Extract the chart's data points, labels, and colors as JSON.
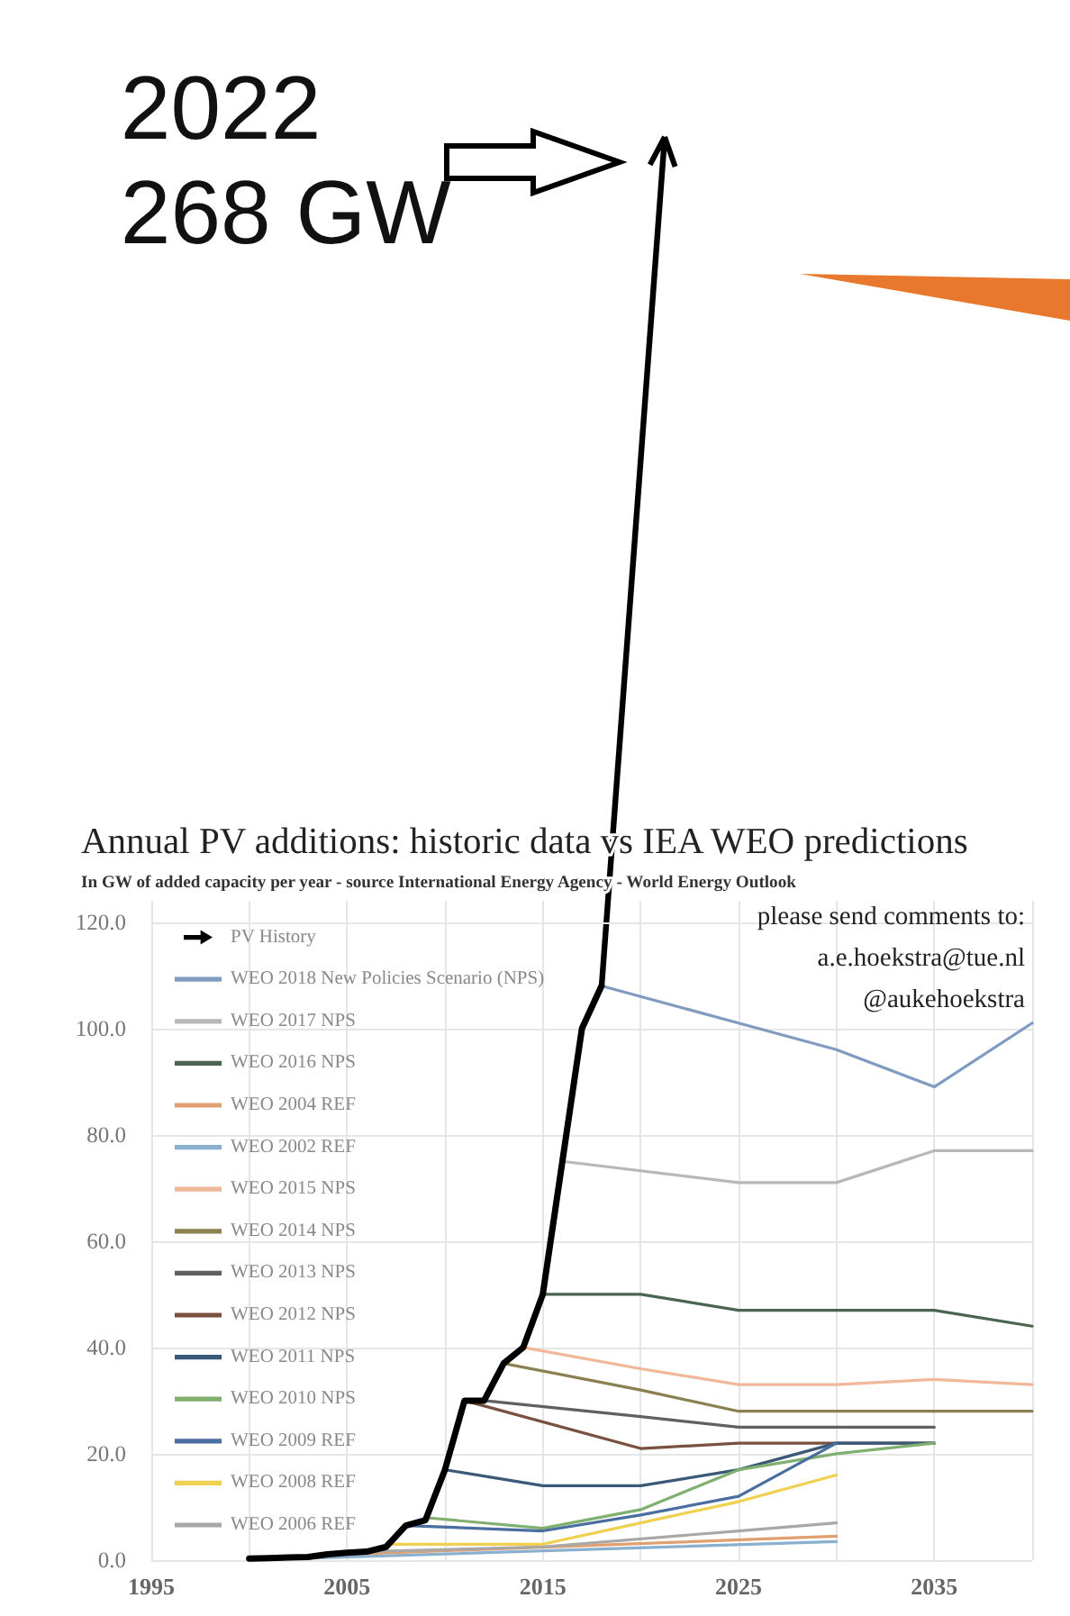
{
  "chart_data": {
    "type": "line",
    "title": "Annual PV additions: historic data vs IEA WEO predictions",
    "subtitle": "In GW of added capacity per year - source International Energy Agency - World Energy Outlook",
    "annotations": [
      "2022\n268 GW",
      "please send comments to:\na.e.hoekstra@tue.nl\n@aukehoekstra"
    ],
    "xlim": [
      1995,
      2040
    ],
    "ylim": [
      0,
      124
    ],
    "xticks": [
      1995,
      {
        "value": 2000,
        "label": null
      },
      2005,
      {
        "value": 2010,
        "label": null
      },
      2015,
      {
        "value": 2020,
        "label": null
      },
      2025,
      {
        "value": 2030,
        "label": null
      },
      2035,
      {
        "value": 2040,
        "label": null
      }
    ],
    "yticks": [
      {
        "value": 0,
        "label": "0.0"
      },
      {
        "value": 20,
        "label": "20.0"
      },
      {
        "value": 40,
        "label": "40.0"
      },
      {
        "value": 60,
        "label": "60.0"
      },
      {
        "value": 80,
        "label": "80.0"
      },
      {
        "value": 100,
        "label": "100.0"
      },
      {
        "value": 120,
        "label": "120.0"
      }
    ],
    "grid": true,
    "legend": "top left",
    "marker": "none",
    "line_style": "solid",
    "series": [
      {
        "name": "PV History",
        "color": "#000000",
        "x": [
          2000,
          2001,
          2002,
          2003,
          2004,
          2005,
          2006,
          2007,
          2008,
          2009,
          2010,
          2011,
          2012,
          2013,
          2014,
          2015,
          2016,
          2017,
          2018
        ],
        "values": [
          0.3,
          0.4,
          0.5,
          0.6,
          1.1,
          1.4,
          1.6,
          2.5,
          6.5,
          7.5,
          17,
          30,
          30,
          37,
          40,
          50,
          75,
          100,
          108
        ]
      },
      {
        "name": "WEO 2018 New Policies Scenario (NPS)",
        "color": "#7f9cc0",
        "x": [
          2018,
          2025,
          2030,
          2035,
          2040
        ],
        "values": [
          108,
          101,
          96,
          89,
          101
        ]
      },
      {
        "name": "WEO 2017 NPS",
        "color": "#b8b8b8",
        "x": [
          2016,
          2025,
          2030,
          2035,
          2040
        ],
        "values": [
          75,
          71,
          71,
          77,
          77
        ]
      },
      {
        "name": "WEO 2016 NPS",
        "color": "#4a6450",
        "x": [
          2015,
          2020,
          2025,
          2030,
          2035,
          2040
        ],
        "values": [
          50,
          50,
          47,
          47,
          47,
          44
        ]
      },
      {
        "name": "WEO 2004 REF",
        "color": "#e0a070",
        "x": [
          2003,
          2030
        ],
        "values": [
          0.8,
          4.5
        ]
      },
      {
        "name": "WEO 2002 REF",
        "color": "#8ab0d0",
        "x": [
          2000,
          2030
        ],
        "values": [
          0,
          3.5
        ]
      },
      {
        "name": "WEO 2015 NPS",
        "color": "#f0b898",
        "x": [
          2014,
          2020,
          2025,
          2030,
          2035,
          2040
        ],
        "values": [
          40,
          36,
          33,
          33,
          34,
          33
        ]
      },
      {
        "name": "WEO 2014 NPS",
        "color": "#8a8050",
        "x": [
          2013,
          2020,
          2025,
          2030,
          2035,
          2040
        ],
        "values": [
          37,
          32,
          28,
          28,
          28,
          28
        ]
      },
      {
        "name": "WEO 2013 NPS",
        "color": "#606060",
        "x": [
          2012,
          2020,
          2025,
          2030,
          2035
        ],
        "values": [
          30,
          27,
          25,
          25,
          25
        ]
      },
      {
        "name": "WEO 2012 NPS",
        "color": "#7a5040",
        "x": [
          2011,
          2020,
          2025,
          2030,
          2035
        ],
        "values": [
          30,
          21,
          22,
          22,
          22
        ]
      },
      {
        "name": "WEO 2011 NPS",
        "color": "#3a5878",
        "x": [
          2010,
          2015,
          2020,
          2025,
          2030,
          2035
        ],
        "values": [
          17,
          14,
          14,
          17,
          22,
          22
        ]
      },
      {
        "name": "WEO 2010 NPS",
        "color": "#80b070",
        "x": [
          2009,
          2015,
          2020,
          2025,
          2030,
          2035
        ],
        "values": [
          8,
          6,
          9.5,
          17,
          20,
          22
        ]
      },
      {
        "name": "WEO 2009 REF",
        "color": "#4a6ea0",
        "x": [
          2008,
          2015,
          2020,
          2025,
          2030
        ],
        "values": [
          6.5,
          5.5,
          8.5,
          12,
          22
        ]
      },
      {
        "name": "WEO 2008 REF",
        "color": "#f0d050",
        "x": [
          2007,
          2015,
          2020,
          2025,
          2030
        ],
        "values": [
          3,
          3,
          7,
          11,
          16
        ]
      },
      {
        "name": "WEO 2006 REF",
        "color": "#a8a8a8",
        "x": [
          2005,
          2015,
          2025,
          2030
        ],
        "values": [
          1.5,
          2.5,
          5.5,
          7
        ]
      }
    ]
  }
}
